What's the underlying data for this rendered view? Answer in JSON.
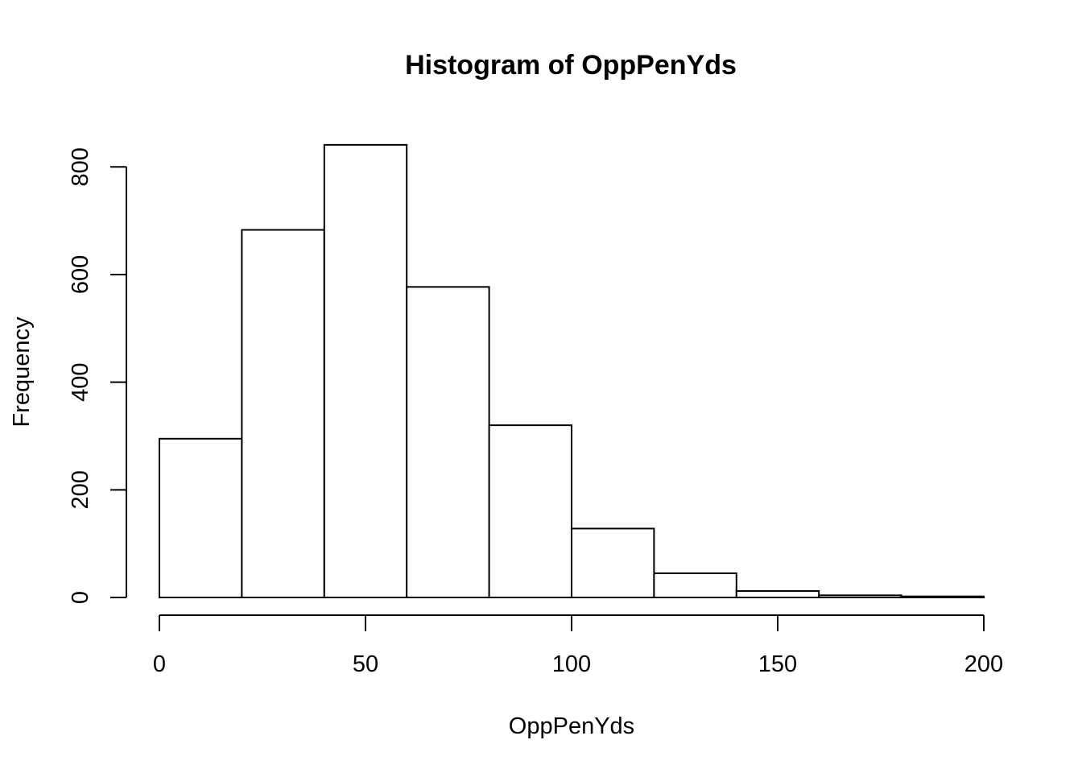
{
  "chart_data": {
    "type": "bar",
    "subtype": "histogram",
    "title": "Histogram of OppPenYds",
    "xlabel": "OppPenYds",
    "ylabel": "Frequency",
    "bins": [
      {
        "start": 0,
        "end": 20,
        "count": 295
      },
      {
        "start": 20,
        "end": 40,
        "count": 683
      },
      {
        "start": 40,
        "end": 60,
        "count": 841
      },
      {
        "start": 60,
        "end": 80,
        "count": 577
      },
      {
        "start": 80,
        "end": 100,
        "count": 320
      },
      {
        "start": 100,
        "end": 120,
        "count": 128
      },
      {
        "start": 120,
        "end": 140,
        "count": 45
      },
      {
        "start": 140,
        "end": 160,
        "count": 12
      },
      {
        "start": 160,
        "end": 180,
        "count": 4
      },
      {
        "start": 180,
        "end": 200,
        "count": 2
      }
    ],
    "xlim": [
      0,
      200
    ],
    "ylim": [
      0,
      841
    ],
    "x_ticks": [
      0,
      50,
      100,
      150,
      200
    ],
    "y_ticks": [
      0,
      200,
      400,
      600,
      800
    ],
    "grid": false,
    "colors": {
      "bar_fill": "#ffffff",
      "bar_stroke": "#000000"
    }
  }
}
